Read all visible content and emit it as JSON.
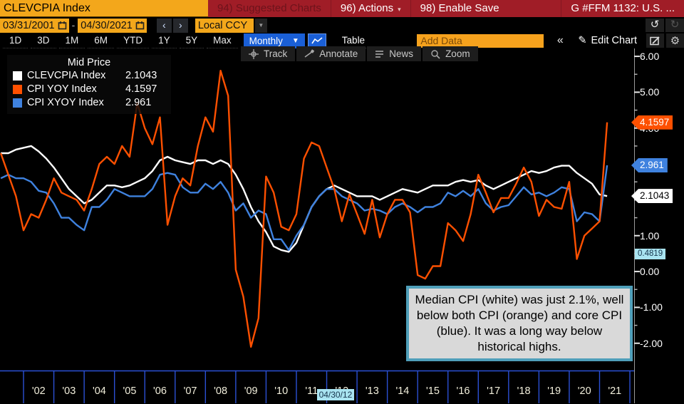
{
  "titlebar": {
    "ticker": "CLEVCPIA Index",
    "suggested_charts": "94) Suggested Charts",
    "actions": "96) Actions",
    "enable_save": "98) Enable Save",
    "chart_title_right": "G #FFM 1132: U.S. ..."
  },
  "toolbar_dates": {
    "start_date": "03/31/2001",
    "end_date": "04/30/2021",
    "separator": "-",
    "prev_arrow": "‹",
    "next_arrow": "›",
    "currency": "Local CCY",
    "undo": "↺",
    "redo": "↻"
  },
  "toolbar_tabs": {
    "ranges": [
      "1D",
      "3D",
      "1M",
      "6M",
      "YTD",
      "1Y",
      "5Y",
      "Max"
    ],
    "period": "Monthly",
    "period_caret": "▼",
    "table_label": "Table",
    "add_data_placeholder": "Add Data",
    "collapse": "«",
    "edit_pencil": "✎",
    "edit_chart": "Edit Chart",
    "gear": "⚙"
  },
  "chart_toolbar": {
    "track": "Track",
    "annotate": "Annotate",
    "news": "News",
    "zoom": "Zoom"
  },
  "legend": {
    "title": "Mid Price",
    "items": [
      {
        "label": "CLEVCPIA Index",
        "value": "2.1043",
        "color": "#ffffff"
      },
      {
        "label": "CPI YOY Index",
        "value": "4.1597",
        "color": "#fe5000"
      },
      {
        "label": "CPI XYOY Index",
        "value": "2.961",
        "color": "#3f82df"
      }
    ]
  },
  "annotation": {
    "text": "Median CPI (white) was just 2.1%, well below both CPI (orange) and core CPI (blue). It was a long way below historical highs."
  },
  "axis_y": {
    "values": [
      6,
      5,
      4,
      3,
      2,
      1,
      0,
      -1,
      -2
    ],
    "labels": [
      "6.00",
      "5.00",
      "4.00",
      "3.00",
      "2.00",
      "1.00",
      "0.00",
      "-1.00",
      "-2.00"
    ],
    "minor_step": 0.5,
    "tags": [
      {
        "label": "4.1597",
        "value": 4.1597,
        "bg": "#fe5000",
        "fg": "#ffffff",
        "small": false
      },
      {
        "label": "2.961",
        "value": 2.961,
        "bg": "#3f82df",
        "fg": "#ffffff",
        "small": false
      },
      {
        "label": "2.1043",
        "value": 2.1043,
        "bg": "#ffffff",
        "fg": "#000000",
        "small": false
      },
      {
        "label": "0.4819",
        "value": 0.4819,
        "bg": "#a9e4f1",
        "fg": "#16354d",
        "small": true
      }
    ]
  },
  "axis_x": {
    "years": [
      2002,
      2003,
      2004,
      2005,
      2006,
      2007,
      2008,
      2009,
      2010,
      2011,
      2012,
      2013,
      2014,
      2015,
      2016,
      2017,
      2018,
      2019,
      2020,
      2021
    ],
    "year_labels": [
      "'02",
      "'03",
      "'04",
      "'05",
      "'06",
      "'07",
      "'08",
      "'09",
      "'10",
      "'11",
      "'12",
      "'13",
      "'14",
      "'15",
      "'16",
      "'17",
      "'18",
      "'19",
      "'20",
      "'21"
    ],
    "gridline_years": [
      2002,
      2003,
      2004,
      2005,
      2006,
      2007,
      2008,
      2009,
      2010,
      2011,
      2012,
      2013,
      2014,
      2015,
      2016,
      2017,
      2018,
      2019,
      2020,
      2021,
      2022
    ],
    "cursor_tag": {
      "label": "04/30/12",
      "x_year": 2012.33
    }
  },
  "chart_data": {
    "type": "line",
    "title": "Mid Price",
    "xlabel": "",
    "ylabel": "",
    "legend_position": "top-left",
    "grid": false,
    "x_start": 2001.25,
    "x_step": 0.25,
    "xlim": [
      2001.224,
      2022.14
    ],
    "ylim": [
      -2.76,
      6.22
    ],
    "series": [
      {
        "name": "CLEVCPIA Index",
        "color": "#ffffff",
        "values": [
          3.3,
          3.3,
          3.4,
          3.45,
          3.5,
          3.35,
          3.15,
          2.9,
          2.6,
          2.3,
          2.1,
          1.9,
          2.0,
          2.2,
          2.4,
          2.4,
          2.35,
          2.4,
          2.5,
          2.6,
          2.8,
          3.1,
          3.2,
          3.1,
          3.05,
          3.0,
          3.1,
          3.1,
          3.0,
          3.1,
          3.0,
          2.7,
          2.3,
          1.8,
          1.4,
          1.1,
          0.7,
          0.6,
          0.55,
          0.8,
          1.3,
          1.8,
          2.1,
          2.3,
          2.4,
          2.3,
          2.2,
          2.1,
          2.1,
          2.1,
          2.0,
          2.1,
          2.2,
          2.3,
          2.25,
          2.2,
          2.3,
          2.4,
          2.4,
          2.4,
          2.5,
          2.55,
          2.5,
          2.55,
          2.4,
          2.3,
          2.4,
          2.5,
          2.6,
          2.7,
          2.8,
          2.75,
          2.8,
          2.9,
          2.95,
          2.95,
          2.75,
          2.6,
          2.45,
          2.15,
          2.1043
        ]
      },
      {
        "name": "CPI YOY Index",
        "color": "#fe5000",
        "values": [
          3.3,
          2.7,
          2.1,
          1.15,
          1.6,
          1.5,
          2.0,
          2.6,
          2.2,
          2.1,
          2.0,
          1.7,
          2.3,
          3.0,
          3.2,
          3.0,
          3.5,
          3.2,
          4.7,
          4.0,
          3.55,
          4.3,
          1.3,
          2.1,
          2.6,
          2.4,
          3.5,
          4.3,
          3.9,
          5.6,
          4.9,
          0.05,
          -0.7,
          -2.1,
          -1.3,
          2.65,
          2.2,
          1.25,
          1.15,
          1.6,
          3.15,
          3.6,
          3.5,
          2.9,
          2.3,
          1.4,
          2.15,
          1.6,
          1.05,
          2.0,
          0.95,
          1.6,
          2.0,
          2.0,
          1.65,
          -0.1,
          -0.2,
          0.15,
          0.15,
          1.35,
          1.15,
          0.85,
          1.6,
          2.7,
          2.2,
          1.65,
          2.05,
          2.05,
          2.45,
          2.9,
          2.5,
          1.55,
          2.0,
          1.8,
          1.75,
          2.5,
          0.35,
          1.0,
          1.2,
          1.4,
          4.1597
        ]
      },
      {
        "name": "CPI XYOY Index",
        "color": "#3f82df",
        "values": [
          2.6,
          2.7,
          2.6,
          2.6,
          2.5,
          2.25,
          2.2,
          1.9,
          1.5,
          1.5,
          1.3,
          1.15,
          1.8,
          1.8,
          2.0,
          2.3,
          2.2,
          2.1,
          2.1,
          2.1,
          2.3,
          2.7,
          2.75,
          2.7,
          2.35,
          2.2,
          2.2,
          2.45,
          2.3,
          2.5,
          2.2,
          1.7,
          1.9,
          1.5,
          1.7,
          1.6,
          0.9,
          0.9,
          0.6,
          1.0,
          1.3,
          1.8,
          2.1,
          2.3,
          2.3,
          2.1,
          2.0,
          1.9,
          1.7,
          1.75,
          1.7,
          1.6,
          1.8,
          1.9,
          1.8,
          1.65,
          1.8,
          1.8,
          1.9,
          2.2,
          2.1,
          2.25,
          2.1,
          2.3,
          1.9,
          1.7,
          1.8,
          1.85,
          2.1,
          2.35,
          2.15,
          2.2,
          2.1,
          2.2,
          2.35,
          2.3,
          1.4,
          1.65,
          1.6,
          1.4,
          2.961
        ]
      }
    ]
  }
}
